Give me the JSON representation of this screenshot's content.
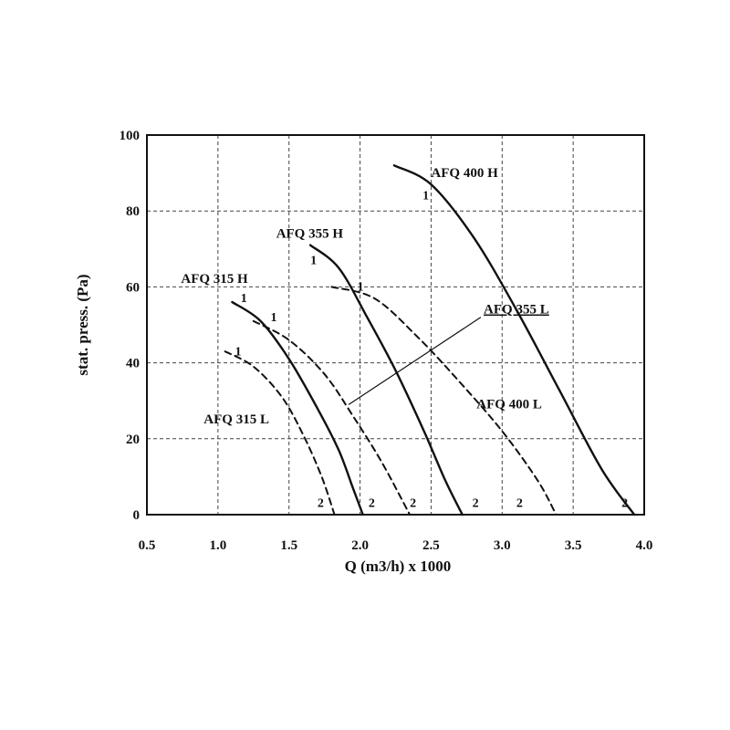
{
  "chart_data": {
    "type": "line",
    "title": "",
    "xlabel": "Q (m3/h) x 1000",
    "ylabel": "stat. press. (Pa)",
    "xlim": [
      0.5,
      4.0
    ],
    "ylim": [
      0,
      100
    ],
    "xticks": [
      "0.5",
      "1.0",
      "1.5",
      "2.0",
      "2.5",
      "3.0",
      "3.5",
      "4.0"
    ],
    "yticks": [
      "0",
      "20",
      "40",
      "60",
      "80",
      "100"
    ],
    "grid": true,
    "line_color": "#111111",
    "series": [
      {
        "name": "AFQ 400 H",
        "style": "solid",
        "x": [
          2.24,
          2.5,
          2.8,
          3.1,
          3.4,
          3.7,
          3.93
        ],
        "y": [
          92,
          87,
          73,
          54,
          33,
          12,
          0
        ]
      },
      {
        "name": "AFQ 355 H",
        "style": "solid",
        "x": [
          1.65,
          1.85,
          2.05,
          2.25,
          2.45,
          2.6,
          2.72
        ],
        "y": [
          71,
          65,
          52,
          38,
          22,
          9,
          0
        ]
      },
      {
        "name": "AFQ 315 H",
        "style": "solid",
        "x": [
          1.1,
          1.3,
          1.5,
          1.7,
          1.85,
          1.95,
          2.02
        ],
        "y": [
          56,
          51,
          41,
          28,
          17,
          7,
          0
        ]
      },
      {
        "name": "AFQ 355 L",
        "style": "dashed",
        "x": [
          1.25,
          1.5,
          1.75,
          1.95,
          2.15,
          2.35
        ],
        "y": [
          51,
          46,
          37,
          26,
          14,
          0
        ]
      },
      {
        "name": "AFQ 400 L",
        "style": "dashed",
        "x": [
          1.8,
          2.1,
          2.4,
          2.7,
          3.0,
          3.25,
          3.38
        ],
        "y": [
          60,
          57,
          47,
          35,
          22,
          9,
          0
        ]
      },
      {
        "name": "AFQ 315 L",
        "style": "dashed",
        "x": [
          1.05,
          1.25,
          1.45,
          1.6,
          1.73,
          1.82
        ],
        "y": [
          43,
          39,
          31,
          21,
          10,
          0
        ]
      }
    ],
    "series_labels": [
      {
        "text": "AFQ 400 H",
        "x": 2.5,
        "y": 89,
        "underline": false
      },
      {
        "text": "AFQ 355 H",
        "x": 1.41,
        "y": 73,
        "underline": false
      },
      {
        "text": "AFQ 315 H",
        "x": 0.74,
        "y": 61,
        "underline": false
      },
      {
        "text": "AFQ 355 L",
        "x": 2.87,
        "y": 53,
        "underline": true
      },
      {
        "text": "AFQ 400 L",
        "x": 2.82,
        "y": 28,
        "underline": false
      },
      {
        "text": "AFQ 315 L",
        "x": 0.9,
        "y": 24,
        "underline": false
      }
    ],
    "point_labels": [
      {
        "text": "1",
        "x": 2.44,
        "y": 83
      },
      {
        "text": "1",
        "x": 1.65,
        "y": 66
      },
      {
        "text": "1",
        "x": 1.16,
        "y": 56
      },
      {
        "text": "1",
        "x": 1.37,
        "y": 51
      },
      {
        "text": "1",
        "x": 1.98,
        "y": 59
      },
      {
        "text": "1",
        "x": 1.12,
        "y": 42
      },
      {
        "text": "2",
        "x": 1.7,
        "y": 2
      },
      {
        "text": "2",
        "x": 2.06,
        "y": 2
      },
      {
        "text": "2",
        "x": 2.35,
        "y": 2
      },
      {
        "text": "2",
        "x": 2.79,
        "y": 2
      },
      {
        "text": "2",
        "x": 3.1,
        "y": 2
      },
      {
        "text": "2",
        "x": 3.84,
        "y": 2
      }
    ],
    "annotations": [
      {
        "label": "AFQ 355 L",
        "from_x": 2.85,
        "from_y": 52,
        "to_x": 1.92,
        "to_y": 29
      }
    ]
  }
}
